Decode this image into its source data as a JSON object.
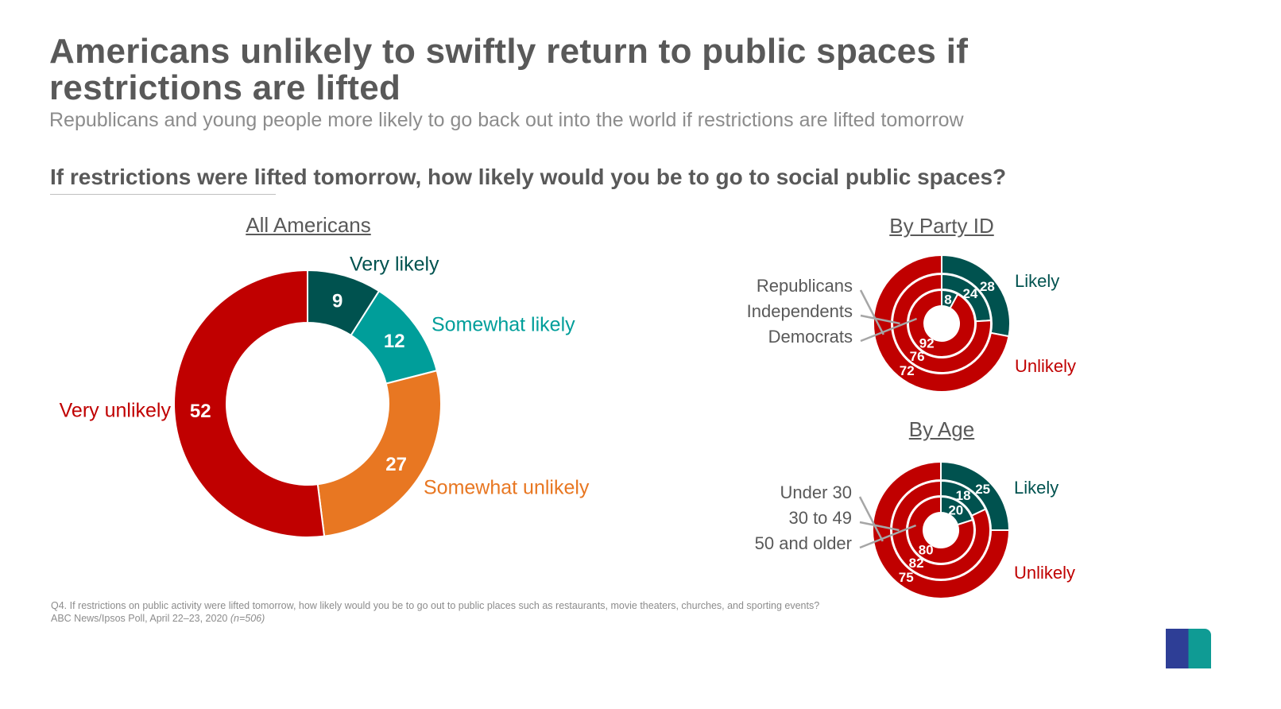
{
  "title": "Americans unlikely to swiftly return to public spaces if restrictions are lifted",
  "subtitle": "Republicans and young people more likely to go back out into the world if restrictions are lifted tomorrow",
  "question": "If restrictions were lifted tomorrow, how likely would you be to go to social public spaces?",
  "footnote": {
    "line1": "Q4. If restrictions on public activity were lifted tomorrow, how likely would you be to go out to public places such as restaurants, movie theaters, churches, and sporting events?",
    "line2": "ABC News/Ipsos Poll, April 22–23, 2020",
    "n": "(n=506)"
  },
  "logo": "Ipsos",
  "colors": {
    "very_likely": "#00524f",
    "somewhat_likely": "#009e9a",
    "somewhat_unlikely": "#e87722",
    "very_unlikely": "#c00000",
    "likely": "#00524f",
    "unlikely": "#c00000"
  },
  "chart_data": [
    {
      "type": "pie",
      "title": "All Americans",
      "donut": true,
      "categories": [
        "Very likely",
        "Somewhat likely",
        "Somewhat unlikely",
        "Very unlikely"
      ],
      "values": [
        9,
        12,
        27,
        52
      ]
    },
    {
      "type": "pie",
      "title": "By Party ID",
      "donut": true,
      "categories": [
        "Likely",
        "Unlikely"
      ],
      "series": [
        {
          "name": "Republicans",
          "values": [
            28,
            72
          ]
        },
        {
          "name": "Independents",
          "values": [
            24,
            76
          ]
        },
        {
          "name": "Democrats",
          "values": [
            8,
            92
          ]
        }
      ]
    },
    {
      "type": "pie",
      "title": "By Age",
      "donut": true,
      "categories": [
        "Likely",
        "Unlikely"
      ],
      "series": [
        {
          "name": "Under 30",
          "values": [
            25,
            75
          ]
        },
        {
          "name": "30 to 49",
          "values": [
            18,
            82
          ]
        },
        {
          "name": "50 and older",
          "values": [
            20,
            80
          ]
        }
      ]
    }
  ]
}
